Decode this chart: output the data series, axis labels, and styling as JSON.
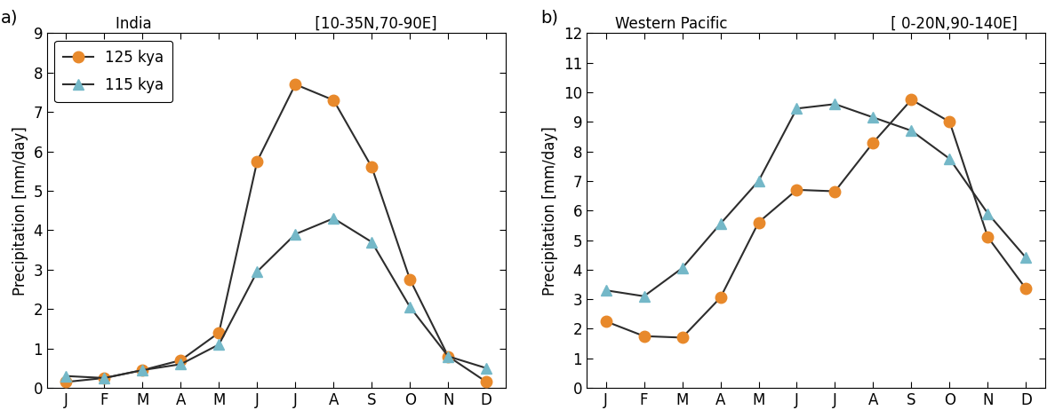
{
  "months": [
    "J",
    "F",
    "M",
    "A",
    "M",
    "J",
    "J",
    "A",
    "S",
    "O",
    "N",
    "D"
  ],
  "india_125kya": [
    0.15,
    0.25,
    0.45,
    0.7,
    1.4,
    5.75,
    7.7,
    7.3,
    5.6,
    2.75,
    0.8,
    0.15
  ],
  "india_115kya": [
    0.3,
    0.25,
    0.45,
    0.6,
    1.1,
    2.95,
    3.9,
    4.3,
    3.7,
    2.05,
    0.8,
    0.5
  ],
  "pacific_125kya": [
    2.25,
    1.75,
    1.7,
    3.05,
    5.6,
    6.7,
    6.65,
    8.3,
    9.75,
    9.0,
    5.1,
    3.35
  ],
  "pacific_115kya": [
    3.3,
    3.1,
    4.05,
    5.55,
    7.0,
    9.45,
    9.6,
    9.15,
    8.7,
    7.75,
    5.9,
    4.4
  ],
  "india_ylim": [
    0,
    9
  ],
  "india_yticks": [
    0,
    1,
    2,
    3,
    4,
    5,
    6,
    7,
    8,
    9
  ],
  "pacific_ylim": [
    0,
    12
  ],
  "pacific_yticks": [
    0,
    1,
    2,
    3,
    4,
    5,
    6,
    7,
    8,
    9,
    10,
    11,
    12
  ],
  "india_title_left": "India",
  "india_title_right": "[10-35N,70-90E]",
  "pacific_title_left": "Western Pacific",
  "pacific_title_right": "[ 0-20N,90-140E]",
  "ylabel": "Precipitation [mm/day]",
  "color_125kya": "#E8892B",
  "color_115kya": "#74B8C8",
  "line_color": "#2d2d2d",
  "legend_125kya": "125 kya",
  "legend_115kya": "115 kya",
  "panel_labels": [
    "a)",
    "b)"
  ],
  "panels": [
    "india",
    "pacific"
  ]
}
